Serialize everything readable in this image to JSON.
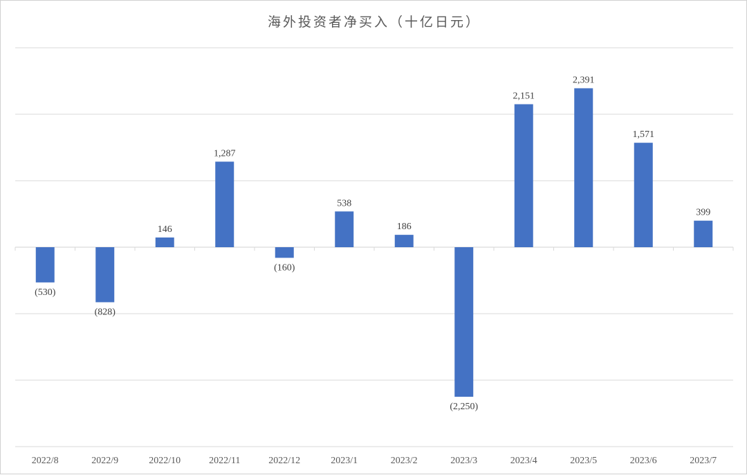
{
  "chart_data": {
    "type": "bar",
    "title": "海外投资者净买入（十亿日元）",
    "categories": [
      "2022/8",
      "2022/9",
      "2022/10",
      "2022/11",
      "2022/12",
      "2023/1",
      "2023/2",
      "2023/3",
      "2023/4",
      "2023/5",
      "2023/6",
      "2023/7"
    ],
    "values": [
      -530,
      -828,
      146,
      1287,
      -160,
      538,
      186,
      -2250,
      2151,
      2391,
      1571,
      399
    ],
    "data_labels": [
      "(530)",
      "(828)",
      "146",
      "1,287",
      "(160)",
      "538",
      "186",
      "(2,250)",
      "2,151",
      "2,391",
      "1,571",
      "399"
    ],
    "xlabel": "",
    "ylabel": "",
    "ylim": [
      -3000,
      3000
    ],
    "grid": true,
    "y_tick_labels_shown": false,
    "bar_color": "#4472C4",
    "grid_color": "#D9D9D9"
  }
}
